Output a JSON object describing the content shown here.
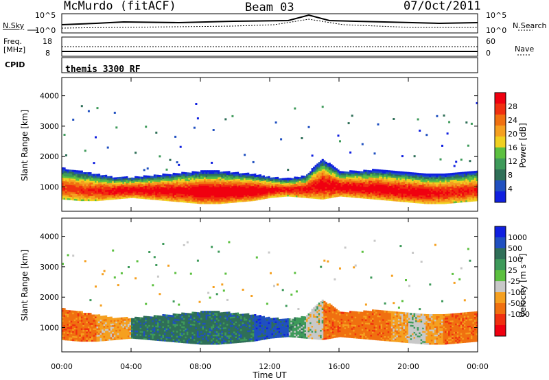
{
  "header": {
    "station": "McMurdo (fitACF)",
    "beam": "Beam 03",
    "date": "07/Oct/2011"
  },
  "noise_panel": {
    "left_label": "N.Sky",
    "right_label": "N.Search",
    "left_ticks": [
      "10^5",
      "10^0"
    ],
    "right_ticks": [
      "10^5",
      "10^0"
    ]
  },
  "freq_panel": {
    "left_label_line1": "Freq.",
    "left_label_line2": "[MHz]",
    "left_ticks": [
      "18",
      "8"
    ],
    "right_label": "Nave",
    "right_ticks": [
      "60",
      "0"
    ],
    "cpid_label": "CPID",
    "cpid_text": "themis 3300 RF"
  },
  "colors": {
    "power": [
      "#1020e0",
      "#2050c0",
      "#2f6f58",
      "#3e9a5a",
      "#5cc040",
      "#f0d020",
      "#f5a020",
      "#f07010",
      "#f03010",
      "#f00010"
    ],
    "velocity": [
      "#f00010",
      "#f03010",
      "#f07010",
      "#f5a020",
      "#c8c8c8",
      "#5cc040",
      "#3e9a5a",
      "#2f6f58",
      "#2050c0",
      "#1020e0"
    ]
  },
  "chart_data": [
    {
      "type": "heatmap",
      "panel": "power",
      "ylabel": "Slant Range [km]",
      "x_ticks": [
        "00:00",
        "04:00",
        "08:00",
        "12:00",
        "16:00",
        "20:00",
        "00:00"
      ],
      "y_ticks": [
        1000,
        2000,
        3000,
        4000
      ],
      "ylim": [
        200,
        4600
      ],
      "xlim_hours": [
        0,
        24
      ],
      "colorbar_label": "Power [dB]",
      "colorbar_ticks": [
        4,
        8,
        12,
        16,
        20,
        24,
        28
      ],
      "colorbar_range": [
        0,
        30
      ],
      "band": {
        "hours": [
          0,
          1,
          2,
          3,
          4,
          5,
          6,
          7,
          8,
          9,
          10,
          11,
          12,
          13,
          14,
          15,
          16,
          17,
          18,
          19,
          20,
          21,
          22,
          23,
          24
        ],
        "lower_km": [
          600,
          550,
          550,
          600,
          650,
          600,
          550,
          500,
          450,
          450,
          500,
          550,
          650,
          700,
          650,
          600,
          700,
          650,
          600,
          550,
          500,
          450,
          450,
          500,
          550
        ],
        "upper_km": [
          1600,
          1500,
          1400,
          1300,
          1300,
          1350,
          1400,
          1450,
          1500,
          1500,
          1450,
          1400,
          1300,
          1250,
          1350,
          1900,
          1500,
          1500,
          1550,
          1500,
          1450,
          1400,
          1400,
          1450,
          1500
        ],
        "peak_power_db": [
          24,
          24,
          26,
          27,
          28,
          28,
          28,
          28,
          30,
          30,
          30,
          30,
          28,
          26,
          26,
          28,
          28,
          28,
          28,
          28,
          28,
          28,
          26,
          26,
          26
        ]
      }
    },
    {
      "type": "heatmap",
      "panel": "velocity",
      "ylabel": "Slant Range [km]",
      "xlabel": "Time UT",
      "x_ticks": [
        "00:00",
        "04:00",
        "08:00",
        "12:00",
        "16:00",
        "20:00",
        "00:00"
      ],
      "y_ticks": [
        1000,
        2000,
        3000,
        4000
      ],
      "ylim": [
        200,
        4600
      ],
      "xlim_hours": [
        0,
        24
      ],
      "colorbar_label": "Velocity [m s⁻¹]",
      "colorbar_ticks": [
        1000,
        500,
        100,
        25,
        -25,
        -100,
        -500,
        -1000
      ],
      "band": {
        "hours": [
          0,
          1,
          2,
          3,
          4,
          5,
          6,
          7,
          8,
          9,
          10,
          11,
          12,
          13,
          14,
          15,
          16,
          17,
          18,
          19,
          20,
          21,
          22,
          23,
          24
        ],
        "velocity_class": [
          -2,
          -2,
          -1,
          -1,
          2,
          2,
          2,
          2,
          2,
          2,
          2,
          3,
          3,
          1,
          0,
          -2,
          -2,
          -2,
          -2,
          -1,
          0,
          -1,
          -2,
          -2,
          -2
        ]
      }
    }
  ]
}
